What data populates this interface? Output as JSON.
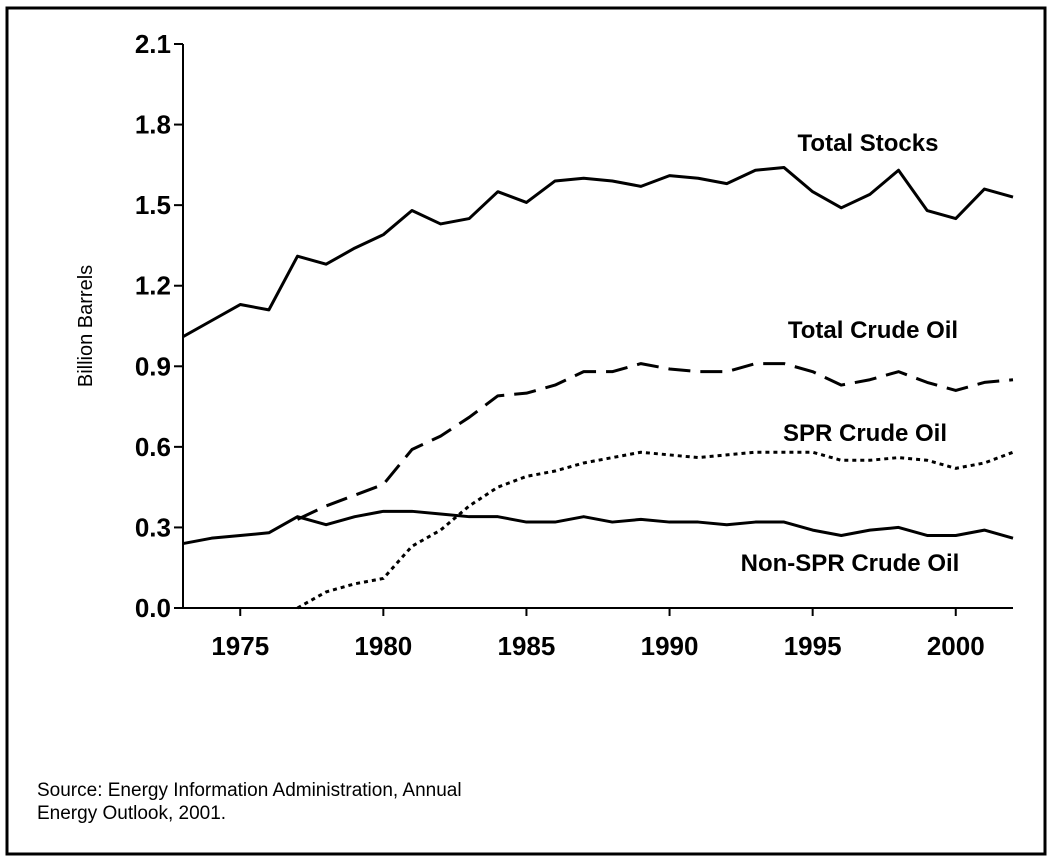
{
  "chart_data": {
    "type": "line",
    "y_label": "Billion Barrels",
    "source": [
      "Source:  Energy Information Administration, Annual",
      "Energy Outlook, 2001."
    ],
    "x": [
      1973,
      1974,
      1975,
      1976,
      1977,
      1978,
      1979,
      1980,
      1981,
      1982,
      1983,
      1984,
      1985,
      1986,
      1987,
      1988,
      1989,
      1990,
      1991,
      1992,
      1993,
      1994,
      1995,
      1996,
      1997,
      1998,
      1999,
      2000,
      2001,
      2002
    ],
    "xlim": [
      1973,
      2002
    ],
    "xticks": [
      1975,
      1980,
      1985,
      1990,
      1995,
      2000
    ],
    "ylim": [
      0,
      2.1
    ],
    "yticks": [
      {
        "value": 0,
        "label": "0.0"
      },
      0.3,
      0.6,
      0.9,
      1.2,
      1.5,
      1.8,
      2.1
    ],
    "grid": false,
    "series": [
      {
        "name": "Total Stocks",
        "color": "#000000",
        "dash": "solid",
        "values": [
          1.01,
          1.07,
          1.13,
          1.11,
          1.31,
          1.28,
          1.34,
          1.39,
          1.48,
          1.43,
          1.45,
          1.55,
          1.51,
          1.59,
          1.6,
          1.59,
          1.57,
          1.61,
          1.6,
          1.58,
          1.63,
          1.64,
          1.55,
          1.49,
          1.54,
          1.63,
          1.48,
          1.45,
          1.56,
          1.53
        ]
      },
      {
        "name": "Total Crude Oil",
        "color": "#000000",
        "dash": "dashed",
        "values": [
          null,
          null,
          null,
          null,
          0.33,
          0.38,
          0.42,
          0.46,
          0.59,
          0.64,
          0.71,
          0.79,
          0.8,
          0.83,
          0.88,
          0.88,
          0.91,
          0.89,
          0.88,
          0.88,
          0.91,
          0.91,
          0.88,
          0.83,
          0.85,
          0.88,
          0.84,
          0.81,
          0.84,
          0.85
        ]
      },
      {
        "name": "SPR Crude Oil",
        "color": "#000000",
        "dash": "dotted",
        "values": [
          null,
          null,
          null,
          null,
          0.0,
          0.06,
          0.09,
          0.11,
          0.23,
          0.29,
          0.38,
          0.45,
          0.49,
          0.51,
          0.54,
          0.56,
          0.58,
          0.57,
          0.56,
          0.57,
          0.58,
          0.58,
          0.58,
          0.55,
          0.55,
          0.56,
          0.55,
          0.52,
          0.54,
          0.58
        ]
      },
      {
        "name": "Non-SPR Crude Oil",
        "color": "#000000",
        "dash": "solid",
        "values": [
          0.24,
          0.26,
          0.27,
          0.28,
          0.34,
          0.31,
          0.34,
          0.36,
          0.36,
          0.35,
          0.34,
          0.34,
          0.32,
          0.32,
          0.34,
          0.32,
          0.33,
          0.32,
          0.32,
          0.31,
          0.32,
          0.32,
          0.29,
          0.27,
          0.29,
          0.3,
          0.27,
          0.27,
          0.29,
          0.26
        ]
      }
    ]
  }
}
